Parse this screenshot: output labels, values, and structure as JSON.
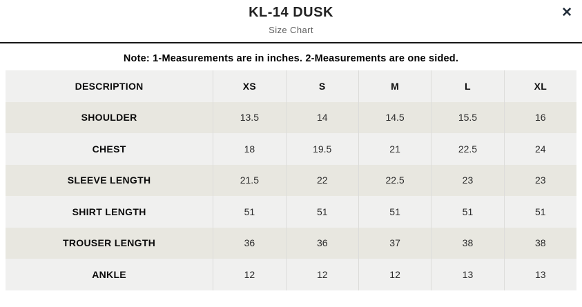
{
  "modal": {
    "title": "KL-14 DUSK",
    "subtitle": "Size Chart",
    "close_glyph": "✕",
    "note": "Note: 1-Measurements are in inches. 2-Measurements are one sided."
  },
  "chart_data": {
    "type": "table",
    "columns": [
      "DESCRIPTION",
      "XS",
      "S",
      "M",
      "L",
      "XL"
    ],
    "rows": [
      {
        "label": "SHOULDER",
        "values": [
          "13.5",
          "14",
          "14.5",
          "15.5",
          "16"
        ]
      },
      {
        "label": "CHEST",
        "values": [
          "18",
          "19.5",
          "21",
          "22.5",
          "24"
        ]
      },
      {
        "label": "SLEEVE LENGTH",
        "values": [
          "21.5",
          "22",
          "22.5",
          "23",
          "23"
        ]
      },
      {
        "label": "SHIRT LENGTH",
        "values": [
          "51",
          "51",
          "51",
          "51",
          "51"
        ]
      },
      {
        "label": "TROUSER LENGTH",
        "values": [
          "36",
          "36",
          "37",
          "38",
          "38"
        ]
      },
      {
        "label": "ANKLE",
        "values": [
          "12",
          "12",
          "12",
          "13",
          "13"
        ]
      }
    ]
  },
  "colors": {
    "row_base": "#f0f0ef",
    "row_alt": "#e8e7e0",
    "column_separator": "#dcdcda",
    "header_divider": "#161616",
    "close_icon": "#222d39"
  }
}
